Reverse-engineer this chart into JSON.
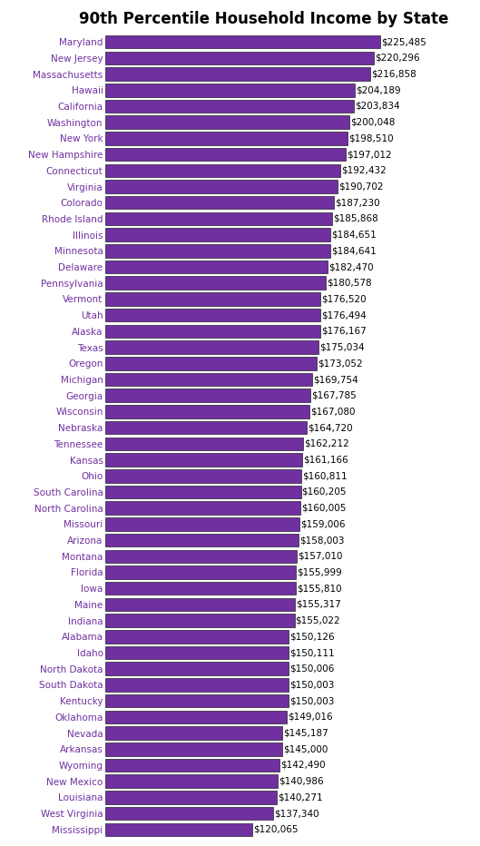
{
  "title": "90th Percentile Household Income by State",
  "states": [
    "Maryland",
    "New Jersey",
    "Massachusetts",
    "Hawaii",
    "California",
    "Washington",
    "New York",
    "New Hampshire",
    "Connecticut",
    "Virginia",
    "Colorado",
    "Rhode Island",
    "Illinois",
    "Minnesota",
    "Delaware",
    "Pennsylvania",
    "Vermont",
    "Utah",
    "Alaska",
    "Texas",
    "Oregon",
    "Michigan",
    "Georgia",
    "Wisconsin",
    "Nebraska",
    "Tennessee",
    "Kansas",
    "Ohio",
    "South Carolina",
    "North Carolina",
    "Missouri",
    "Arizona",
    "Montana",
    "Florida",
    "Iowa",
    "Maine",
    "Indiana",
    "Alabama",
    "Idaho",
    "North Dakota",
    "South Dakota",
    "Kentucky",
    "Oklahoma",
    "Nevada",
    "Arkansas",
    "Wyoming",
    "New Mexico",
    "Louisiana",
    "West Virginia",
    "Mississippi"
  ],
  "values": [
    225485,
    220296,
    216858,
    204189,
    203834,
    200048,
    198510,
    197012,
    192432,
    190702,
    187230,
    185868,
    184651,
    184641,
    182470,
    180578,
    176520,
    176494,
    176167,
    175034,
    173052,
    169754,
    167785,
    167080,
    164720,
    162212,
    161166,
    160811,
    160205,
    160005,
    159006,
    158003,
    157010,
    155999,
    155810,
    155317,
    155022,
    150126,
    150111,
    150006,
    150003,
    150003,
    149016,
    145187,
    145000,
    142490,
    140986,
    140271,
    137340,
    120065
  ],
  "bar_color": "#7030A0",
  "bar_edge_color": "#000000",
  "value_color": "#000000",
  "label_color": "#7030A0",
  "title_fontsize": 12,
  "tick_fontsize": 7.5,
  "value_fontsize": 7.5,
  "background_color": "#FFFFFF"
}
